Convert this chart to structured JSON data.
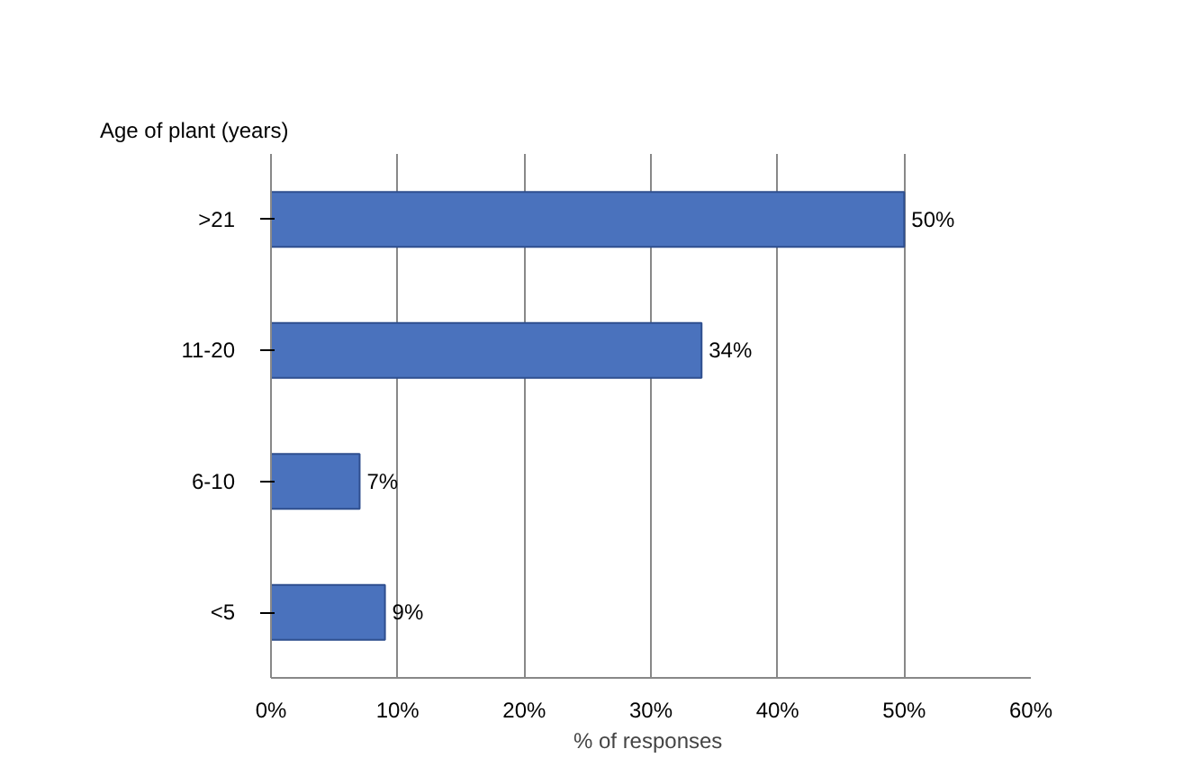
{
  "chart_data": {
    "type": "bar",
    "orientation": "horizontal",
    "categories": [
      ">21",
      "11-20",
      "6-10",
      "<5"
    ],
    "values": [
      50,
      34,
      7,
      9
    ],
    "value_labels": [
      "50%",
      "34%",
      "7%",
      "9%"
    ],
    "color": "#4a72bd",
    "xlim": [
      0,
      60
    ],
    "xticks": [
      {
        "value": 0,
        "label": "0%"
      },
      {
        "value": 10,
        "label": "10%"
      },
      {
        "value": 20,
        "label": "20%"
      },
      {
        "value": 30,
        "label": "30%"
      },
      {
        "value": 40,
        "label": "40%"
      },
      {
        "value": 50,
        "label": "50%"
      },
      {
        "value": 60,
        "label": "60%"
      }
    ],
    "xlabel": "%  of responses",
    "ylabel": "Age of plant (years)",
    "grid": "x"
  }
}
